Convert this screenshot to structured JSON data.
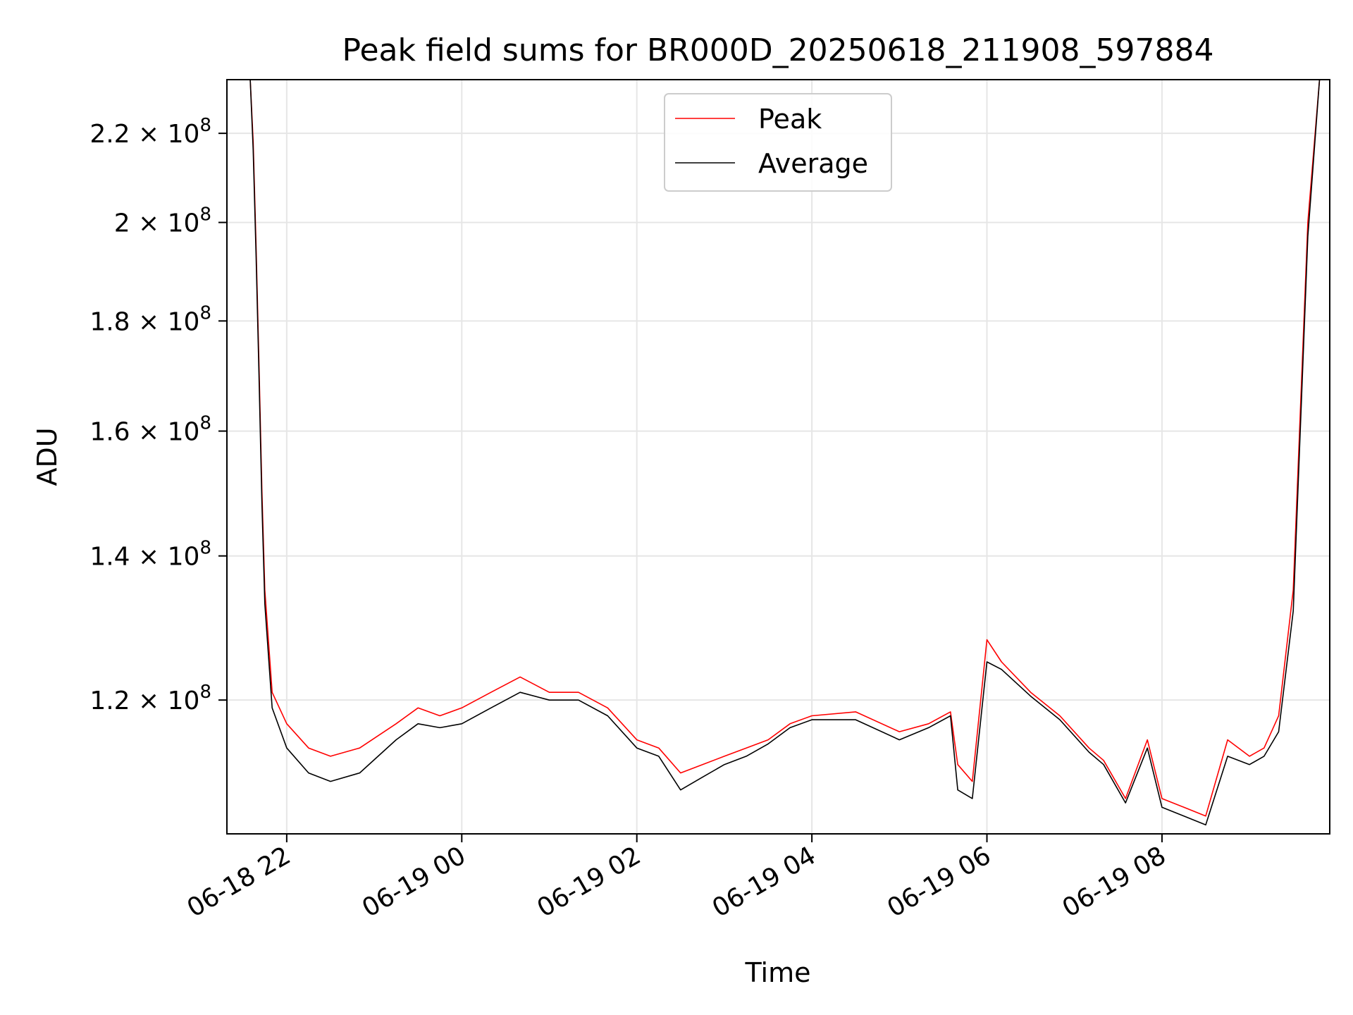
{
  "chart_data": {
    "type": "line",
    "title": "Peak field sums for BR000D_20250618_211908_597884",
    "xlabel": "Time",
    "ylabel": "ADU",
    "y_scale": "log",
    "grid": true,
    "legend_position": "top-center",
    "xlim": [
      "06-18 21:19",
      "06-19 09:55"
    ],
    "ylim": [
      104000000,
      233000000
    ],
    "x_ticks": [
      "06-18 22",
      "06-19 00",
      "06-19 02",
      "06-19 04",
      "06-19 06",
      "06-19 08"
    ],
    "y_ticks": [
      {
        "value": 120000000,
        "mantissa": "1.2",
        "exp": "8"
      },
      {
        "value": 140000000,
        "mantissa": "1.4",
        "exp": "8"
      },
      {
        "value": 160000000,
        "mantissa": "1.6",
        "exp": "8"
      },
      {
        "value": 180000000,
        "mantissa": "1.8",
        "exp": "8"
      },
      {
        "value": 200000000,
        "mantissa": "2",
        "exp": "8"
      },
      {
        "value": 220000000,
        "mantissa": "2.2",
        "exp": "8"
      }
    ],
    "series": [
      {
        "name": "Peak",
        "color": "#ff0000",
        "x": [
          "06-18 21:20",
          "06-18 21:35",
          "06-18 21:37",
          "06-18 21:39",
          "06-18 21:41",
          "06-18 21:43",
          "06-18 21:45",
          "06-18 21:50",
          "06-18 22:00",
          "06-18 22:15",
          "06-18 22:30",
          "06-18 22:50",
          "06-18 23:15",
          "06-18 23:30",
          "06-18 23:45",
          "06-19 00:00",
          "06-19 00:20",
          "06-19 00:40",
          "06-19 01:00",
          "06-19 01:20",
          "06-19 01:40",
          "06-19 02:00",
          "06-19 02:15",
          "06-19 02:30",
          "06-19 02:45",
          "06-19 03:00",
          "06-19 03:15",
          "06-19 03:30",
          "06-19 03:45",
          "06-19 04:00",
          "06-19 04:30",
          "06-19 05:00",
          "06-19 05:20",
          "06-19 05:35",
          "06-19 05:40",
          "06-19 05:50",
          "06-19 06:00",
          "06-19 06:10",
          "06-19 06:30",
          "06-19 06:50",
          "06-19 07:10",
          "06-19 07:20",
          "06-19 07:35",
          "06-19 07:50",
          "06-19 08:00",
          "06-19 08:15",
          "06-19 08:30",
          "06-19 08:45",
          "06-19 09:00",
          "06-19 09:10",
          "06-19 09:20",
          "06-19 09:30",
          "06-19 09:40",
          "06-19 09:48"
        ],
        "values": [
          233000000,
          233000000,
          218000000,
          195000000,
          172000000,
          150000000,
          135000000,
          121000000,
          117000000,
          114000000,
          113000000,
          114000000,
          117000000,
          119000000,
          118000000,
          119000000,
          121000000,
          123000000,
          121000000,
          121000000,
          119000000,
          115000000,
          114000000,
          111000000,
          112000000,
          113000000,
          114000000,
          115000000,
          117000000,
          118000000,
          118500000,
          116000000,
          117000000,
          118500000,
          112000000,
          110000000,
          128000000,
          125000000,
          121000000,
          118000000,
          114000000,
          112500000,
          108000000,
          115000000,
          108000000,
          107000000,
          106000000,
          115000000,
          113000000,
          114000000,
          118000000,
          135000000,
          200000000,
          233000000
        ]
      },
      {
        "name": "Average",
        "color": "#000000",
        "x": [
          "06-18 21:20",
          "06-18 21:35",
          "06-18 21:37",
          "06-18 21:39",
          "06-18 21:41",
          "06-18 21:43",
          "06-18 21:45",
          "06-18 21:50",
          "06-18 22:00",
          "06-18 22:15",
          "06-18 22:30",
          "06-18 22:50",
          "06-18 23:15",
          "06-18 23:30",
          "06-18 23:45",
          "06-19 00:00",
          "06-19 00:20",
          "06-19 00:40",
          "06-19 01:00",
          "06-19 01:20",
          "06-19 01:40",
          "06-19 02:00",
          "06-19 02:15",
          "06-19 02:30",
          "06-19 02:45",
          "06-19 03:00",
          "06-19 03:15",
          "06-19 03:30",
          "06-19 03:45",
          "06-19 04:00",
          "06-19 04:30",
          "06-19 05:00",
          "06-19 05:20",
          "06-19 05:35",
          "06-19 05:40",
          "06-19 05:50",
          "06-19 06:00",
          "06-19 06:10",
          "06-19 06:30",
          "06-19 06:50",
          "06-19 07:10",
          "06-19 07:20",
          "06-19 07:35",
          "06-19 07:50",
          "06-19 08:00",
          "06-19 08:15",
          "06-19 08:30",
          "06-19 08:45",
          "06-19 09:00",
          "06-19 09:10",
          "06-19 09:20",
          "06-19 09:30",
          "06-19 09:40",
          "06-19 09:48"
        ],
        "values": [
          233000000,
          233000000,
          216000000,
          193000000,
          170000000,
          148000000,
          133000000,
          119000000,
          114000000,
          111000000,
          110000000,
          111000000,
          115000000,
          117000000,
          116500000,
          117000000,
          119000000,
          121000000,
          120000000,
          120000000,
          118000000,
          114000000,
          113000000,
          109000000,
          110500000,
          112000000,
          113000000,
          114500000,
          116500000,
          117500000,
          117500000,
          115000000,
          116500000,
          118000000,
          109000000,
          108000000,
          125000000,
          124000000,
          120500000,
          117500000,
          113500000,
          112000000,
          107500000,
          114000000,
          107000000,
          106000000,
          105000000,
          113000000,
          112000000,
          113000000,
          116000000,
          132000000,
          197000000,
          233000000
        ]
      }
    ]
  }
}
